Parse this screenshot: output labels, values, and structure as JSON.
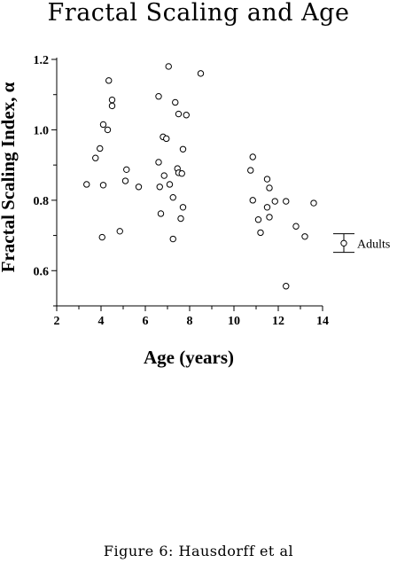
{
  "chart_data": {
    "type": "scatter",
    "title": "Fractal Scaling and Age",
    "xlabel": "Age (years)",
    "ylabel": "Fractal Scaling Index, α",
    "xlim": [
      2,
      14
    ],
    "ylim": [
      0.5,
      1.2
    ],
    "xticks": [
      "2",
      "4",
      "6",
      "8",
      "10",
      "12",
      "14"
    ],
    "yticks": [
      "0.6",
      "0.8",
      "1.0",
      "1.2"
    ],
    "grid": false,
    "points": [
      [
        3.35,
        0.845
      ],
      [
        3.75,
        0.92
      ],
      [
        3.95,
        0.947
      ],
      [
        4.05,
        0.695
      ],
      [
        4.1,
        0.843
      ],
      [
        4.1,
        1.015
      ],
      [
        4.3,
        1.0
      ],
      [
        4.35,
        1.14
      ],
      [
        4.5,
        1.085
      ],
      [
        4.5,
        1.068
      ],
      [
        4.85,
        0.712
      ],
      [
        5.1,
        0.855
      ],
      [
        5.15,
        0.887
      ],
      [
        5.7,
        0.838
      ],
      [
        6.6,
        0.908
      ],
      [
        6.6,
        1.095
      ],
      [
        6.65,
        0.838
      ],
      [
        6.7,
        0.762
      ],
      [
        6.8,
        0.98
      ],
      [
        6.85,
        0.87
      ],
      [
        6.95,
        0.975
      ],
      [
        7.05,
        1.18
      ],
      [
        7.1,
        0.845
      ],
      [
        7.25,
        0.69
      ],
      [
        7.25,
        0.808
      ],
      [
        7.35,
        1.078
      ],
      [
        7.45,
        0.89
      ],
      [
        7.5,
        1.045
      ],
      [
        7.5,
        0.878
      ],
      [
        7.6,
        0.748
      ],
      [
        7.65,
        0.876
      ],
      [
        7.7,
        0.78
      ],
      [
        7.7,
        0.945
      ],
      [
        7.85,
        1.042
      ],
      [
        8.5,
        1.16
      ],
      [
        10.75,
        0.885
      ],
      [
        10.85,
        0.923
      ],
      [
        10.85,
        0.8
      ],
      [
        11.1,
        0.745
      ],
      [
        11.2,
        0.708
      ],
      [
        11.5,
        0.86
      ],
      [
        11.5,
        0.78
      ],
      [
        11.6,
        0.752
      ],
      [
        11.6,
        0.835
      ],
      [
        11.85,
        0.797
      ],
      [
        12.35,
        0.797
      ],
      [
        12.35,
        0.556
      ],
      [
        12.8,
        0.726
      ],
      [
        13.2,
        0.697
      ],
      [
        13.6,
        0.792
      ]
    ],
    "reference": {
      "label": "Adults",
      "value": 0.678,
      "error_low": 0.652,
      "error_high": 0.705
    }
  },
  "caption": "Figure 6: Hausdorff et al"
}
